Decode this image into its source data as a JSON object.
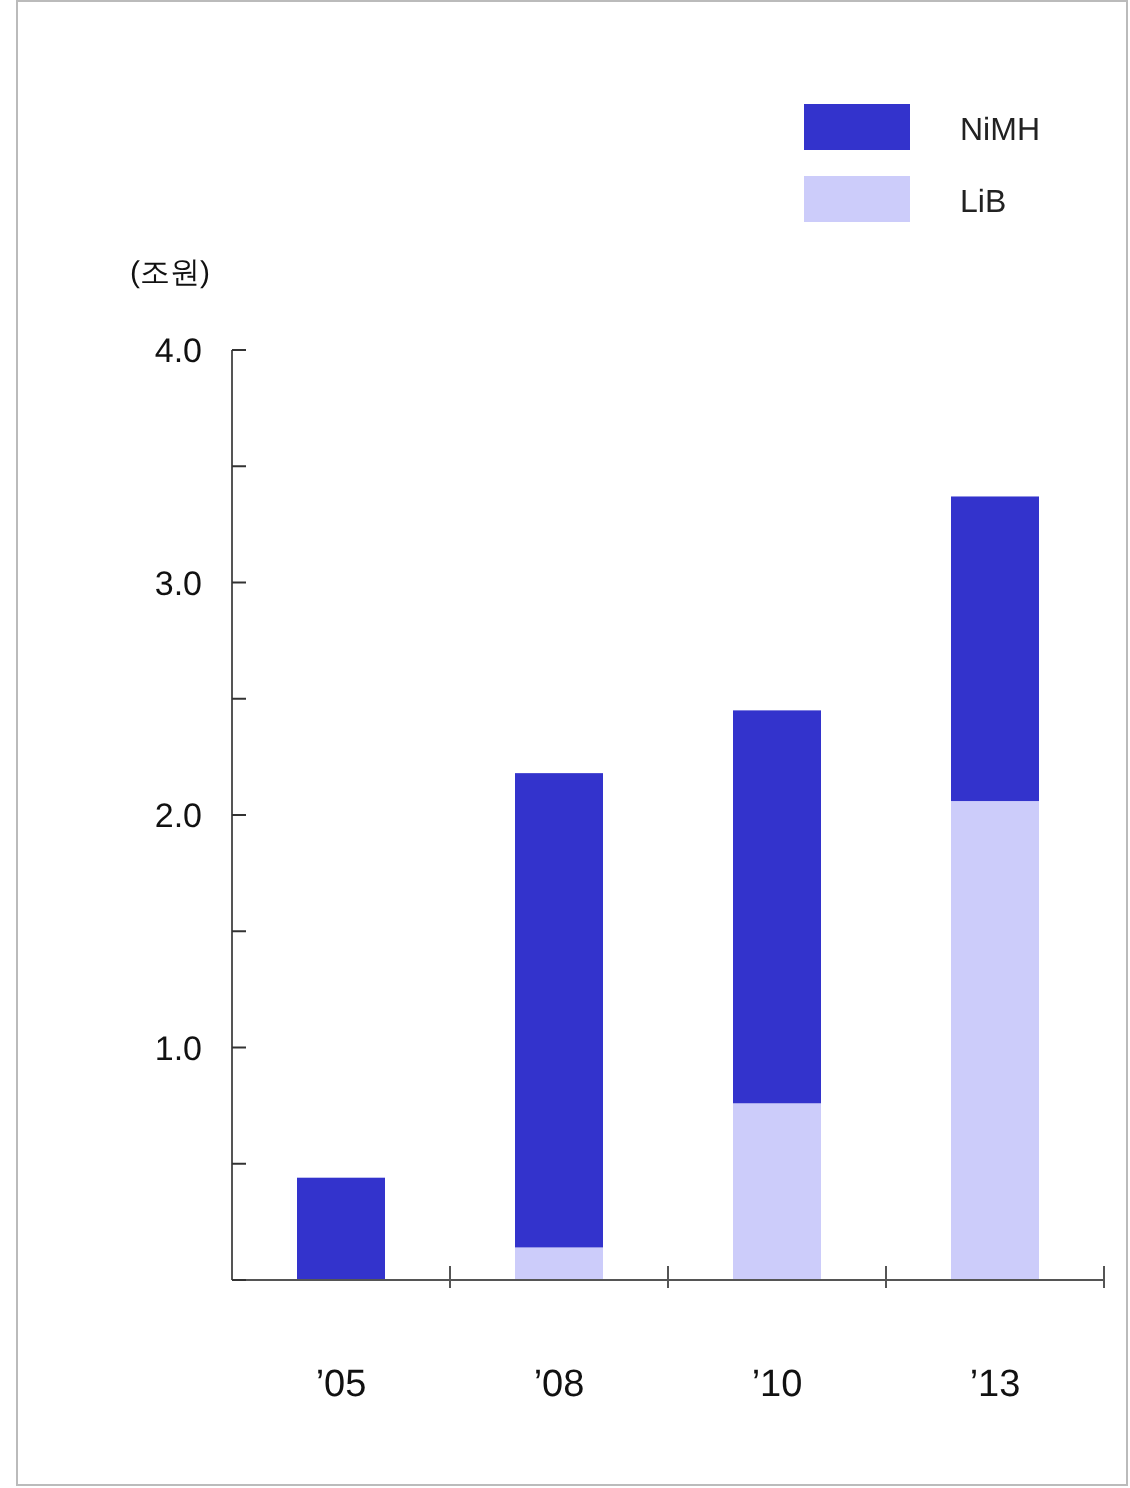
{
  "chart_data": {
    "type": "bar",
    "stacked": true,
    "ylabel": "(조원)",
    "categories": [
      "’05",
      "’08",
      "’10",
      "’13"
    ],
    "series": [
      {
        "name": "LiB",
        "color": "#ccccfa",
        "values": [
          0,
          0.14,
          0.76,
          2.06
        ]
      },
      {
        "name": "NiMH",
        "color": "#3333cc",
        "values": [
          0.44,
          2.04,
          1.69,
          1.31
        ]
      }
    ],
    "ylim": [
      0,
      4
    ],
    "yticks": [
      {
        "value": 0,
        "label": null
      },
      {
        "value": 0.5,
        "label": null
      },
      {
        "value": 1,
        "label": "1.0"
      },
      {
        "value": 1.5,
        "label": null
      },
      {
        "value": 2,
        "label": "2.0"
      },
      {
        "value": 2.5,
        "label": null
      },
      {
        "value": 3,
        "label": "3.0"
      },
      {
        "value": 3.5,
        "label": null
      },
      {
        "value": 4,
        "label": "4.0"
      }
    ],
    "legend": "top right",
    "grid": false
  }
}
